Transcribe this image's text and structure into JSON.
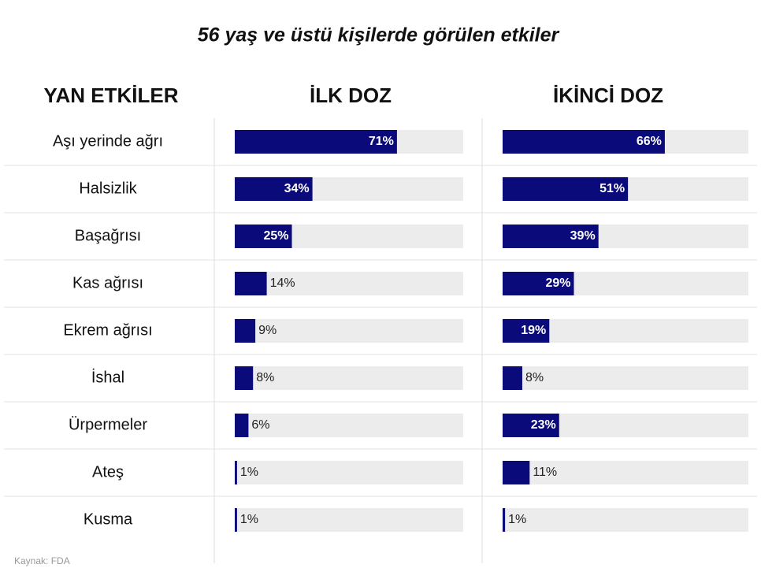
{
  "chart_data": {
    "type": "bar",
    "orientation": "horizontal",
    "title": "56 yaş ve üstü kişilerde görülen etkiler",
    "row_header": "YAN ETKİLER",
    "categories": [
      "Aşı yerinde ağrı",
      "Halsizlik",
      "Başağrısı",
      "Kas ağrısı",
      "Ekrem ağrısı",
      "İshal",
      "Ürpermeler",
      "Ateş",
      "Kusma"
    ],
    "xlim": [
      0,
      100
    ],
    "series": [
      {
        "name": "İLK DOZ",
        "color": "#0a0a7a",
        "values": [
          71,
          34,
          25,
          14,
          9,
          8,
          6,
          1,
          1
        ],
        "value_labels": [
          "71%",
          "34%",
          "25%",
          "14%",
          "9%",
          "8%",
          "6%",
          "1%",
          "1%"
        ]
      },
      {
        "name": "İKİNCİ DOZ",
        "color": "#0a0a7a",
        "values": [
          66,
          51,
          39,
          29,
          19,
          8,
          23,
          11,
          1
        ],
        "value_labels": [
          "66%",
          "51%",
          "39%",
          "29%",
          "19%",
          "8%",
          "23%",
          "11%",
          "1%"
        ]
      }
    ],
    "source": "Kaynak: FDA"
  }
}
